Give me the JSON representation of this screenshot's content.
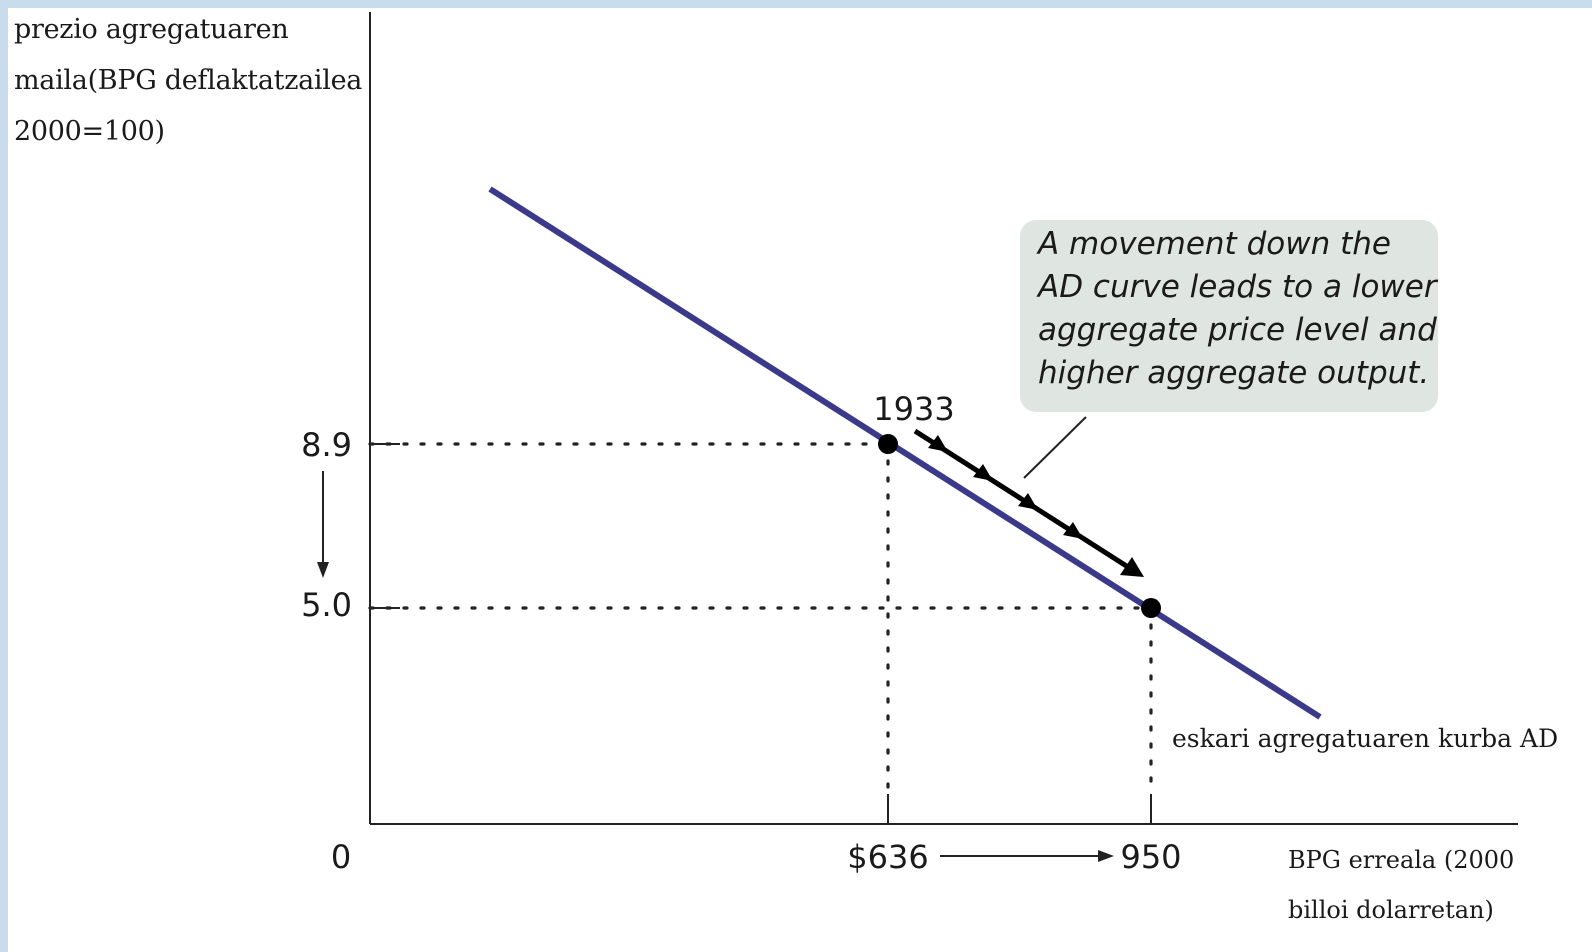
{
  "chart_data": {
    "type": "line",
    "ylabel_lines": [
      "prezio agregatuaren",
      "maila(BPG deflaktatzailea",
      "2000=100)"
    ],
    "xlabel_lines": [
      "BPG erreala (2000",
      "billoi dolarretan)"
    ],
    "origin_label": "0",
    "curve_label": "eskari agregatuaren kurba AD",
    "points": [
      {
        "x": 636,
        "y": 8.9,
        "x_label": "$636",
        "y_label": "8.9",
        "point_label": "1933"
      },
      {
        "x": 950,
        "y": 5.0,
        "x_label": "950",
        "y_label": "5.0"
      }
    ],
    "annotation_lines": [
      "A movement down the",
      "AD curve leads to a lower",
      "aggregate price level and",
      "higher aggregate output."
    ],
    "colors": {
      "curve": "#3b3a8a",
      "points": "#000000",
      "callout_bg": "#dfe5e1",
      "page_bg": "#c9dceb"
    }
  }
}
